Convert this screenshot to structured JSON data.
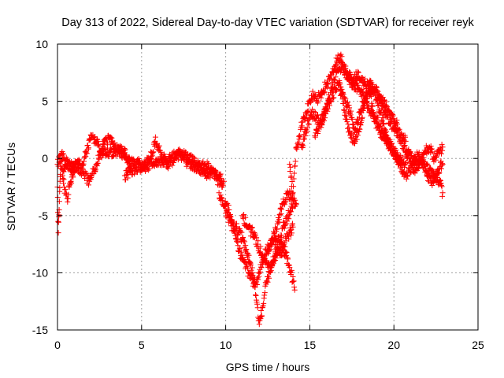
{
  "chart_data": {
    "type": "scatter",
    "title": "Day 313 of 2022, Sidereal Day-to-day VTEC variation (SDTVAR) for receiver reyk",
    "xlabel": "GPS time / hours",
    "ylabel": "SDTVAR / TECUs",
    "xlim": [
      0,
      25
    ],
    "ylim": [
      -15,
      10
    ],
    "xticks": [
      0,
      5,
      10,
      15,
      20,
      25
    ],
    "yticks": [
      -15,
      -10,
      -5,
      0,
      5,
      10
    ],
    "xtick_labels": [
      "0",
      "5",
      "10",
      "15",
      "20",
      "25"
    ],
    "ytick_labels": [
      "-15",
      "-10",
      "-5",
      "0",
      "5",
      "10"
    ],
    "grid": true,
    "marker": "+",
    "color": "#ff0000",
    "series": [
      {
        "name": "SDTVAR",
        "tracks": [
          {
            "x": [
              0.0,
              0.05,
              0.1,
              0.15,
              0.2,
              0.3,
              0.4,
              0.5,
              0.6,
              0.7,
              0.8,
              0.9,
              1.0
            ],
            "y": [
              -2.5,
              -6.5,
              -4.5,
              -2.0,
              0.0,
              -1.0,
              -2.5,
              -3.2,
              -3.8,
              -2.5,
              -2.0,
              -1.5,
              -1.2
            ]
          },
          {
            "x": [
              0.0,
              0.3,
              0.5,
              0.8,
              1.0,
              1.3,
              1.6,
              1.9,
              2.2,
              2.5,
              2.8,
              3.1,
              3.4,
              3.7,
              4.0,
              4.3,
              4.6,
              5.0,
              5.3,
              5.6,
              5.9,
              6.2,
              6.5,
              6.8,
              7.1,
              7.4,
              7.7,
              8.0,
              8.3,
              8.6,
              9.0,
              9.3,
              9.6,
              9.9
            ],
            "y": [
              -0.5,
              0.3,
              -0.2,
              -1.0,
              -0.8,
              -0.5,
              -1.5,
              -2.0,
              -1.0,
              0.3,
              0.8,
              0.5,
              0.6,
              0.8,
              0.5,
              -0.5,
              -0.3,
              -0.6,
              -0.8,
              -0.3,
              -0.2,
              -0.3,
              -0.5,
              -0.2,
              0.2,
              0.3,
              0.1,
              -0.2,
              -0.5,
              -0.6,
              -0.8,
              -1.2,
              -1.6,
              -2.0
            ]
          },
          {
            "x": [
              0.3,
              0.5,
              0.8,
              1.1,
              1.4,
              1.7,
              2.0,
              2.3,
              2.6,
              2.9,
              3.2,
              3.5,
              3.8,
              4.1,
              4.4
            ],
            "y": [
              -1.5,
              -0.5,
              -0.7,
              -0.3,
              -1.2,
              0.5,
              2.0,
              1.5,
              0.5,
              1.8,
              1.5,
              0.8,
              0.5,
              0.2,
              -0.5
            ]
          },
          {
            "x": [
              4.0,
              4.3,
              4.6,
              4.9,
              5.2,
              5.5,
              5.8,
              6.0,
              6.2,
              6.5,
              6.8,
              7.1,
              7.4,
              7.7,
              8.0,
              8.3,
              8.6,
              8.9,
              9.2,
              9.5,
              9.8
            ],
            "y": [
              -1.5,
              -1.2,
              -1.0,
              -0.8,
              -0.5,
              0.0,
              1.5,
              1.0,
              0.3,
              -0.2,
              0.0,
              0.5,
              0.2,
              -0.3,
              -0.5,
              -0.8,
              -1.0,
              -1.5,
              -1.2,
              -1.8,
              -2.5
            ]
          },
          {
            "x": [
              9.6,
              9.8,
              10.0,
              10.2,
              10.4,
              10.6,
              10.8,
              11.0,
              11.2,
              11.4,
              11.6,
              11.8,
              12.0,
              12.2,
              12.4,
              12.6,
              12.8,
              13.0,
              13.2,
              13.4,
              13.6,
              13.8,
              14.0
            ],
            "y": [
              -3.0,
              -4.0,
              -4.2,
              -4.5,
              -5.5,
              -6.0,
              -6.5,
              -7.0,
              -8.0,
              -9.0,
              -10.0,
              -12.0,
              -14.5,
              -13.0,
              -11.0,
              -10.0,
              -9.0,
              -8.0,
              -8.5,
              -8.0,
              -7.0,
              -6.5,
              -6.0
            ]
          },
          {
            "x": [
              10.0,
              10.3,
              10.6,
              10.9,
              11.2,
              11.5,
              11.8,
              12.1,
              12.4,
              12.7,
              13.0,
              13.3,
              13.6,
              13.9,
              14.1
            ],
            "y": [
              -4.8,
              -5.5,
              -7.0,
              -8.5,
              -9.5,
              -10.5,
              -11.0,
              -9.5,
              -8.0,
              -7.5,
              -7.0,
              -7.5,
              -8.5,
              -10.0,
              -11.5
            ]
          },
          {
            "x": [
              11.0,
              11.3,
              11.6,
              11.9,
              12.2,
              12.5,
              12.8,
              13.1,
              13.4,
              13.7,
              14.0
            ],
            "y": [
              -5.0,
              -6.0,
              -6.5,
              -7.5,
              -8.5,
              -9.5,
              -9.0,
              -8.0,
              -6.0,
              -5.0,
              -4.0
            ]
          },
          {
            "x": [
              12.5,
              12.8,
              13.1,
              13.4,
              13.7,
              14.0,
              14.2
            ],
            "y": [
              -8.0,
              -7.0,
              -5.5,
              -4.0,
              -3.0,
              -3.5,
              -4.0
            ]
          },
          {
            "x": [
              13.8,
              14.0,
              14.2,
              14.4,
              14.6,
              14.8,
              15.0,
              15.2,
              15.4,
              15.6,
              15.8,
              16.0,
              16.2,
              16.4,
              16.6,
              16.8,
              17.0,
              17.3,
              17.6,
              17.9,
              18.2,
              18.5,
              18.8,
              19.1,
              19.4,
              19.7,
              20.0,
              20.3
            ],
            "y": [
              -0.5,
              -3.0,
              1.0,
              2.0,
              3.5,
              4.0,
              5.0,
              5.5,
              5.0,
              5.5,
              6.0,
              6.5,
              7.0,
              7.5,
              8.5,
              9.0,
              8.0,
              7.0,
              6.5,
              6.0,
              5.5,
              4.5,
              3.5,
              2.5,
              2.0,
              1.5,
              0.5,
              -0.5
            ]
          },
          {
            "x": [
              14.5,
              14.8,
              15.1,
              15.4,
              15.7,
              16.0,
              16.3,
              16.6,
              16.9,
              17.2,
              17.5,
              17.8,
              18.1,
              18.4,
              18.7,
              19.0,
              19.3,
              19.6,
              19.9,
              20.2
            ],
            "y": [
              1.0,
              2.5,
              4.0,
              3.5,
              3.0,
              4.5,
              6.0,
              7.5,
              8.0,
              7.5,
              7.0,
              7.2,
              6.8,
              6.5,
              6.0,
              5.5,
              5.0,
              4.5,
              3.5,
              3.0
            ]
          },
          {
            "x": [
              15.3,
              15.6,
              15.9,
              16.2,
              16.5,
              16.8,
              17.1,
              17.4,
              17.7,
              18.0,
              18.3,
              18.6,
              18.9,
              19.2,
              19.5,
              19.8,
              20.1,
              20.4
            ],
            "y": [
              2.0,
              3.0,
              4.0,
              5.0,
              6.0,
              6.5,
              4.0,
              2.0,
              1.5,
              3.0,
              5.0,
              6.5,
              5.5,
              4.0,
              2.5,
              1.0,
              0.5,
              -0.5
            ]
          },
          {
            "x": [
              16.8,
              17.1,
              17.4,
              17.7,
              18.0,
              18.3,
              18.6,
              18.9,
              19.2,
              19.5,
              19.8,
              20.1,
              20.4,
              20.7
            ],
            "y": [
              6.0,
              5.0,
              4.0,
              2.5,
              4.0,
              5.5,
              6.5,
              6.0,
              5.0,
              4.0,
              3.0,
              2.5,
              2.0,
              1.5
            ]
          },
          {
            "x": [
              18.5,
              18.8,
              19.1,
              19.4,
              19.7,
              20.0,
              20.3,
              20.6,
              20.9,
              21.2,
              21.5,
              21.8,
              22.1,
              22.4,
              22.7,
              22.9
            ],
            "y": [
              6.0,
              4.0,
              3.0,
              2.0,
              1.0,
              0.5,
              0.0,
              -0.5,
              0.5,
              -0.3,
              0.0,
              -0.5,
              -1.0,
              -1.5,
              -2.0,
              -3.0
            ]
          },
          {
            "x": [
              20.0,
              20.3,
              20.6,
              20.9,
              21.2,
              21.5,
              21.8,
              22.1,
              22.4,
              22.7,
              22.9
            ],
            "y": [
              3.0,
              2.0,
              1.0,
              0.0,
              -1.0,
              -0.5,
              0.5,
              1.0,
              0.0,
              0.5,
              1.0
            ]
          },
          {
            "x": [
              20.2,
              20.5,
              20.8,
              21.1,
              21.4,
              21.7,
              22.0,
              22.3,
              22.6,
              22.9
            ],
            "y": [
              0.0,
              -1.0,
              -1.5,
              -0.5,
              0.3,
              -0.2,
              -1.5,
              -2.0,
              -1.0,
              -0.5
            ]
          }
        ]
      }
    ]
  }
}
